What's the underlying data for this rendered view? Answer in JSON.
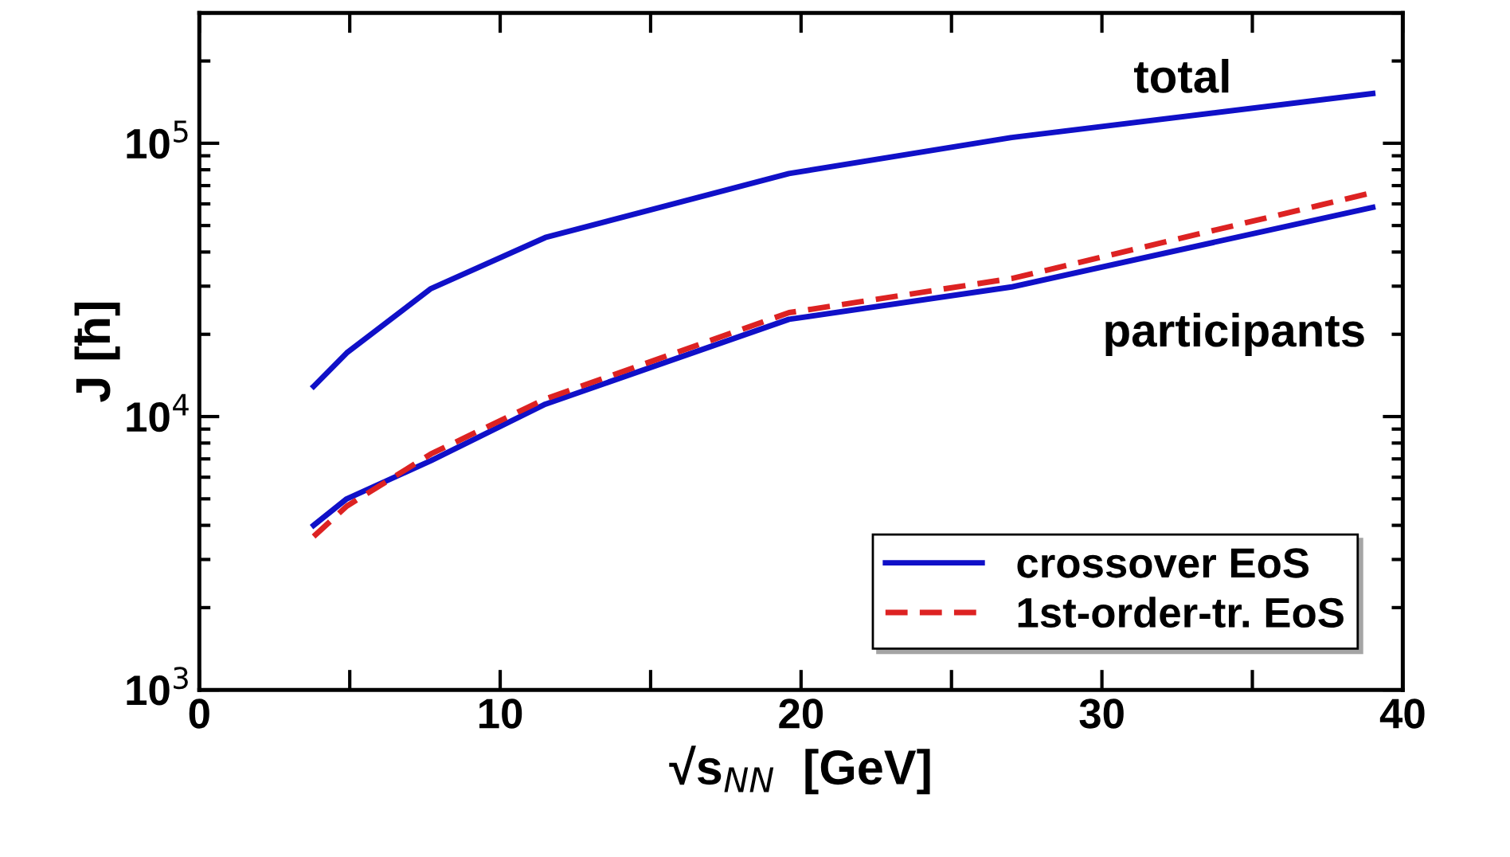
{
  "chart_data": {
    "type": "line",
    "xlabel": "√s$_{NN}$  [GeV]",
    "ylabel": "J [ħ]",
    "x": [
      3.8,
      4.9,
      7.7,
      11.5,
      19.6,
      27,
      39
    ],
    "series": [
      {
        "name": "crossover EoS",
        "color": "#1010c8",
        "line_style": "solid",
        "values": [
          12900,
          17100,
          29400,
          45200,
          77500,
          105000,
          152000
        ]
      },
      {
        "color": "#1010c8",
        "line_style": "solid",
        "values": [
          4000,
          5000,
          6900,
          11100,
          22700,
          29800,
          58300
        ]
      },
      {
        "name": "1st-order-tr. EoS",
        "color": "#dd2222",
        "line_style": "dashed",
        "values": [
          3640,
          4700,
          7300,
          11600,
          24000,
          32000,
          66000
        ]
      }
    ],
    "annotations": [
      "total",
      "participants"
    ],
    "xlim": [
      0,
      40
    ],
    "xticks": [
      0,
      {
        "value": 5,
        "label": null
      },
      10,
      {
        "value": 15,
        "label": null
      },
      20,
      {
        "value": 25,
        "label": null
      },
      30,
      {
        "value": 35,
        "label": null
      },
      40
    ],
    "log": "y",
    "ylim": [
      1000,
      300000
    ],
    "yticks": [
      {
        "value": 1000,
        "label": "10$^{3}$"
      },
      {
        "value": 10000,
        "label": "10$^{4}$"
      },
      {
        "value": 100000,
        "label": "10$^{5}$"
      }
    ],
    "grid": false,
    "legend": "bottom right",
    "marker": "none"
  }
}
